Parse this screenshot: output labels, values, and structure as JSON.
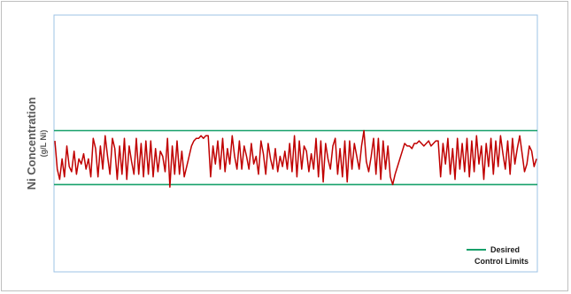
{
  "chart_data": {
    "type": "line",
    "title": "",
    "ylabel": "Ni Concentration",
    "ylabel_unit": "(g/L Ni)",
    "xlabel": "",
    "ylim": [
      0,
      100
    ],
    "grid": false,
    "legend_position": "bottom-right",
    "colors": {
      "series": "#c00000",
      "control_limits": "#17a06a",
      "plot_border": "#9dc3e6"
    },
    "control_limits": {
      "name_line1": "Desired",
      "name_line2": "Control Limits",
      "upper": 55,
      "lower": 34
    },
    "series": [
      {
        "name": "",
        "values": [
          51,
          40,
          36,
          44,
          37,
          49,
          41,
          39,
          47,
          38,
          44,
          42,
          46,
          40,
          44,
          37,
          52,
          48,
          37,
          49,
          40,
          53,
          45,
          38,
          52,
          48,
          36,
          49,
          38,
          52,
          36,
          49,
          43,
          38,
          52,
          38,
          50,
          37,
          51,
          38,
          51,
          37,
          48,
          39,
          47,
          45,
          39,
          52,
          33,
          49,
          38,
          51,
          38,
          47,
          37,
          41,
          45,
          49,
          51,
          52,
          52,
          53,
          52,
          53,
          53,
          37,
          49,
          42,
          51,
          40,
          52,
          39,
          48,
          42,
          53,
          45,
          40,
          51,
          40,
          49,
          45,
          40,
          50,
          42,
          45,
          38,
          51,
          46,
          38,
          50,
          44,
          40,
          48,
          39,
          45,
          41,
          47,
          40,
          50,
          39,
          53,
          37,
          51,
          40,
          49,
          47,
          39,
          46,
          40,
          52,
          37,
          51,
          35,
          50,
          44,
          40,
          49,
          52,
          38,
          48,
          37,
          51,
          35,
          51,
          40,
          50,
          45,
          40,
          49,
          55,
          43,
          39,
          45,
          52,
          38,
          52,
          36,
          51,
          40,
          49,
          37,
          34,
          38,
          41,
          44,
          47,
          50,
          49,
          49,
          48,
          50,
          50,
          51,
          50,
          49,
          50,
          51,
          49,
          50,
          51,
          51,
          37,
          50,
          42,
          52,
          38,
          48,
          36,
          52,
          40,
          50,
          39,
          52,
          37,
          51,
          39,
          53,
          42,
          49,
          36,
          50,
          41,
          52,
          38,
          51,
          41,
          53,
          46,
          40,
          51,
          38,
          52,
          42,
          48,
          53,
          46,
          39,
          42,
          49,
          47,
          41,
          44
        ]
      }
    ]
  }
}
